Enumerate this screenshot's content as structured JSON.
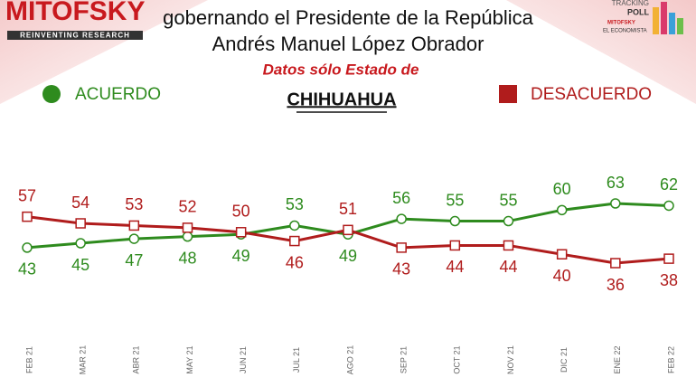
{
  "brand": {
    "name": "MITOFSKY",
    "tagline": "REINVENTING RESEARCH",
    "logo_lines": [
      "TRACKING",
      "POLL",
      "MITOFSKY",
      "EL ECONOMISTA"
    ]
  },
  "chart_data": {
    "type": "line",
    "title_lines": [
      "gobernando el Presidente de la República",
      "Andrés Manuel López Obrador"
    ],
    "subtitle": "Datos sólo Estado de",
    "state": "CHIHUAHUA",
    "categories": [
      "FEB 21",
      "MAR 21",
      "ABR 21",
      "MAY 21",
      "JUN 21",
      "JUL 21",
      "AGO 21",
      "SEP 21",
      "OCT 21",
      "NOV 21",
      "DIC 21",
      "ENE 22",
      "FEB 22"
    ],
    "series": [
      {
        "name": "ACUERDO",
        "color": "#2e8b1e",
        "values": [
          43,
          45,
          47,
          48,
          49,
          53,
          49,
          56,
          55,
          55,
          60,
          63,
          62
        ]
      },
      {
        "name": "DESACUERDO",
        "color": "#b01c1c",
        "values": [
          57,
          54,
          53,
          52,
          50,
          46,
          51,
          43,
          44,
          44,
          40,
          36,
          38
        ]
      }
    ]
  }
}
